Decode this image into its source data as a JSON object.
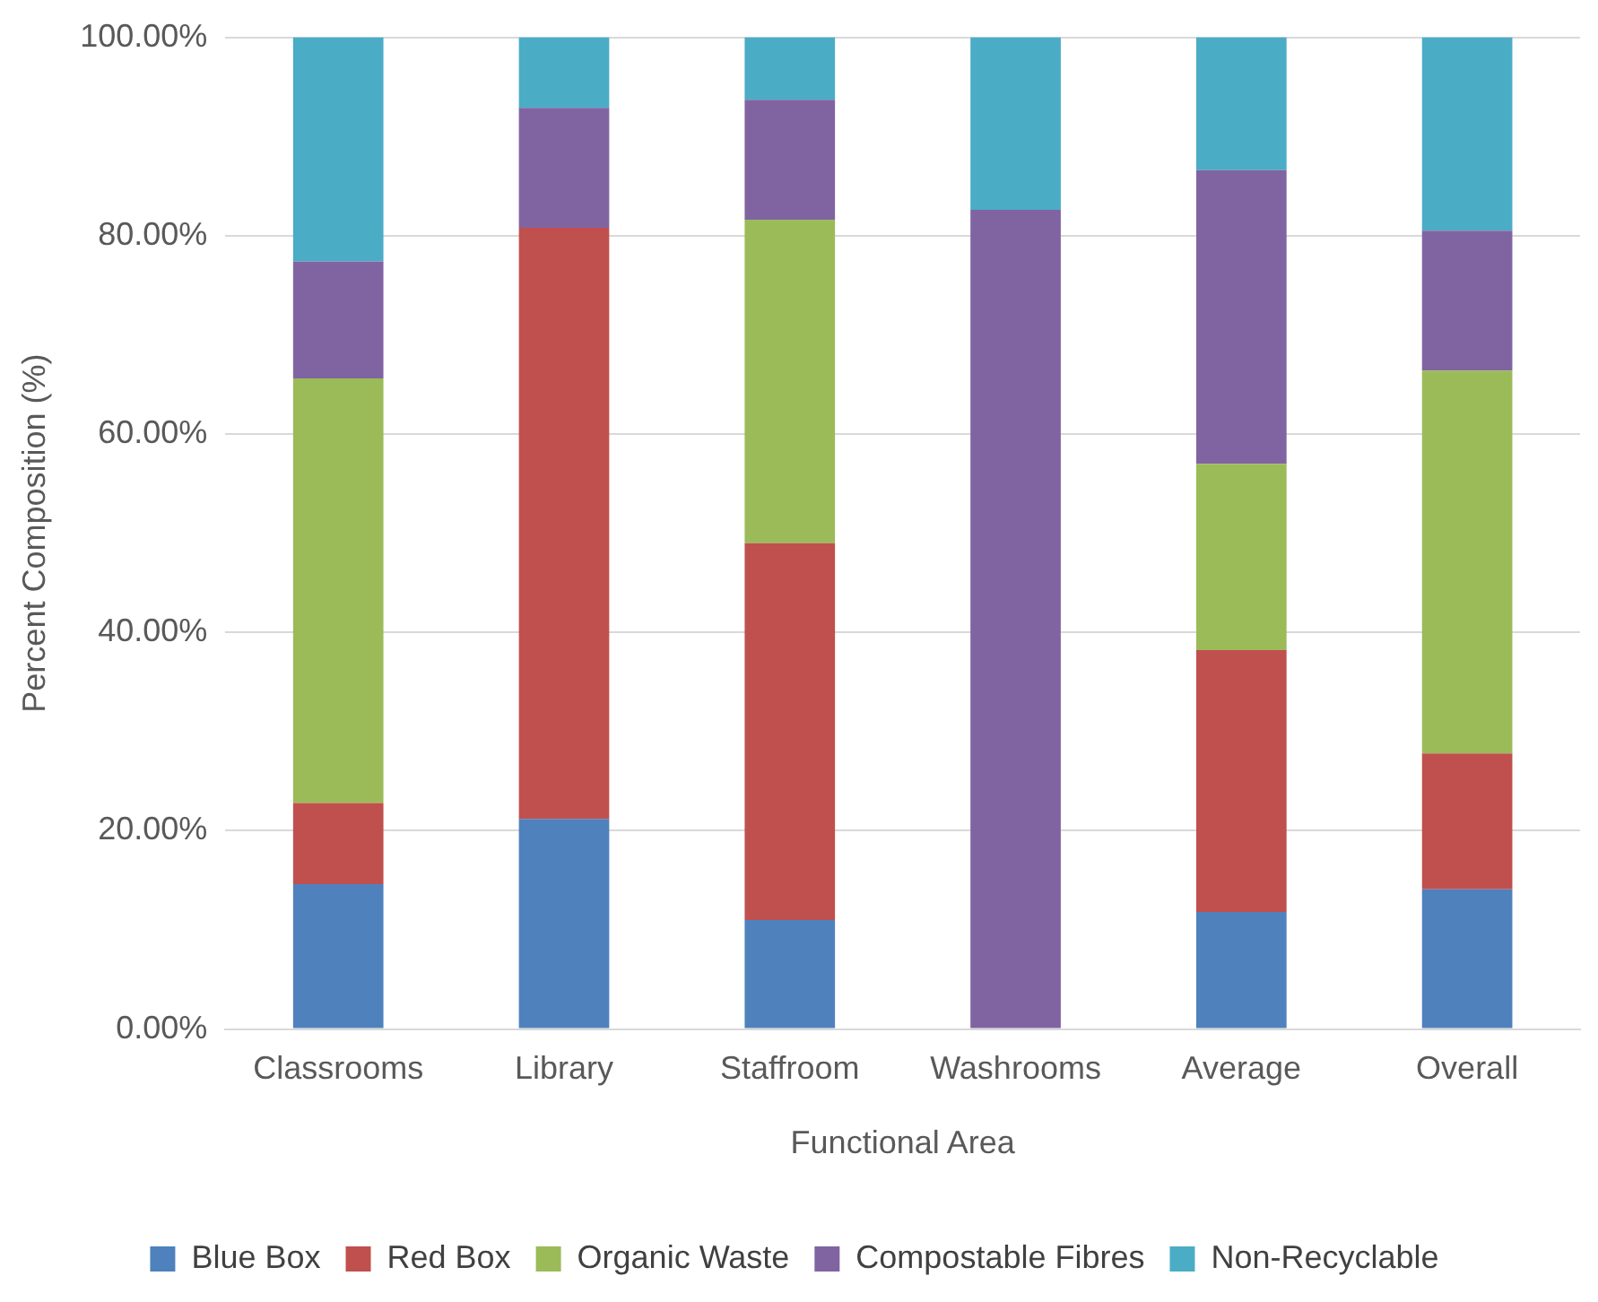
{
  "chart_data": {
    "type": "bar",
    "stacked": true,
    "xlabel": "Functional Area",
    "ylabel": "Percent Composition (%)",
    "categories": [
      "Classrooms",
      "Library",
      "Staffroom",
      "Washrooms",
      "Average",
      "Overall"
    ],
    "series": [
      {
        "name": "Blue Box",
        "color": "#4f81bd",
        "values": [
          14.6,
          21.2,
          11.0,
          0,
          11.8,
          14.1
        ]
      },
      {
        "name": "Red Box",
        "color": "#c0504d",
        "values": [
          8.2,
          59.6,
          38.0,
          0,
          26.4,
          13.7
        ]
      },
      {
        "name": "Organic Waste",
        "color": "#9bbb59",
        "values": [
          42.8,
          0,
          32.6,
          0,
          18.8,
          38.6
        ]
      },
      {
        "name": "Compostable Fibres",
        "color": "#8064a2",
        "values": [
          11.8,
          12.1,
          12.1,
          82.6,
          29.6,
          14.1
        ]
      },
      {
        "name": "Non-Recyclable",
        "color": "#4bacc6",
        "values": [
          22.6,
          7.1,
          6.3,
          17.4,
          13.4,
          19.5
        ]
      }
    ],
    "ylim": [
      0,
      100
    ],
    "yticks": [
      {
        "value": 0,
        "label": "0.00%"
      },
      {
        "value": 20,
        "label": "20.00%"
      },
      {
        "value": 40,
        "label": "40.00%"
      },
      {
        "value": 60,
        "label": "60.00%"
      },
      {
        "value": 80,
        "label": "80.00%"
      },
      {
        "value": 100,
        "label": "100.00%"
      }
    ],
    "grid": "y",
    "legend": "bottom"
  }
}
